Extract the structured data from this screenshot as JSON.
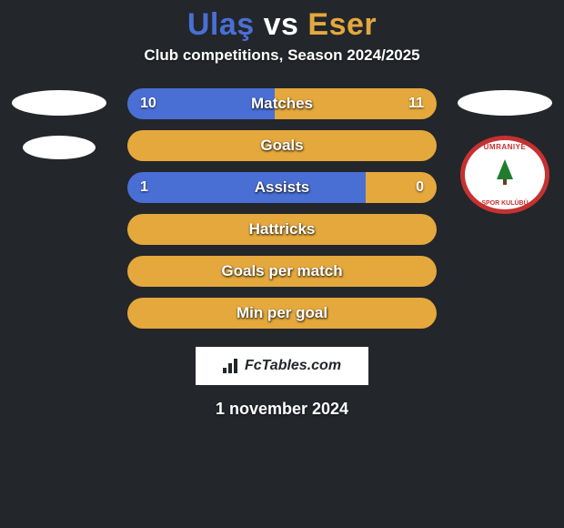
{
  "background_color": "#23262b",
  "title": {
    "player_left": "Ulaş",
    "vs": " vs ",
    "player_right": "Eser",
    "left_color": "#4a6fd4",
    "right_color": "#e4a83c"
  },
  "subtitle": "Club competitions, Season 2024/2025",
  "left_badges": {
    "show_ellipse_big": true,
    "show_ellipse_small": true
  },
  "right_badges": {
    "show_ellipse_big": true,
    "show_club": true,
    "club_text_top": "UMRANIYE",
    "club_text_bottom": "SPOR KULÜBÜ"
  },
  "stat_colors": {
    "left": "#4a6fd4",
    "right": "#e4a83c",
    "empty_left": "#4a6fd4",
    "empty_right": "#e4a83c",
    "bar_radius": "17px",
    "label_fontsize": 17
  },
  "stats": [
    {
      "label": "Matches",
      "left_value": "10",
      "right_value": "11",
      "left_pct": 47.6,
      "right_pct": 52.4,
      "show_values": true
    },
    {
      "label": "Goals",
      "left_value": "",
      "right_value": "",
      "left_pct": 0,
      "right_pct": 100,
      "show_values": false
    },
    {
      "label": "Assists",
      "left_value": "1",
      "right_value": "0",
      "left_pct": 77,
      "right_pct": 23,
      "show_values": true
    },
    {
      "label": "Hattricks",
      "left_value": "",
      "right_value": "",
      "left_pct": 0,
      "right_pct": 100,
      "show_values": false
    },
    {
      "label": "Goals per match",
      "left_value": "",
      "right_value": "",
      "left_pct": 0,
      "right_pct": 100,
      "show_values": false
    },
    {
      "label": "Min per goal",
      "left_value": "",
      "right_value": "",
      "left_pct": 0,
      "right_pct": 100,
      "show_values": false
    }
  ],
  "watermark": "FcTables.com",
  "footer_date": "1 november 2024"
}
